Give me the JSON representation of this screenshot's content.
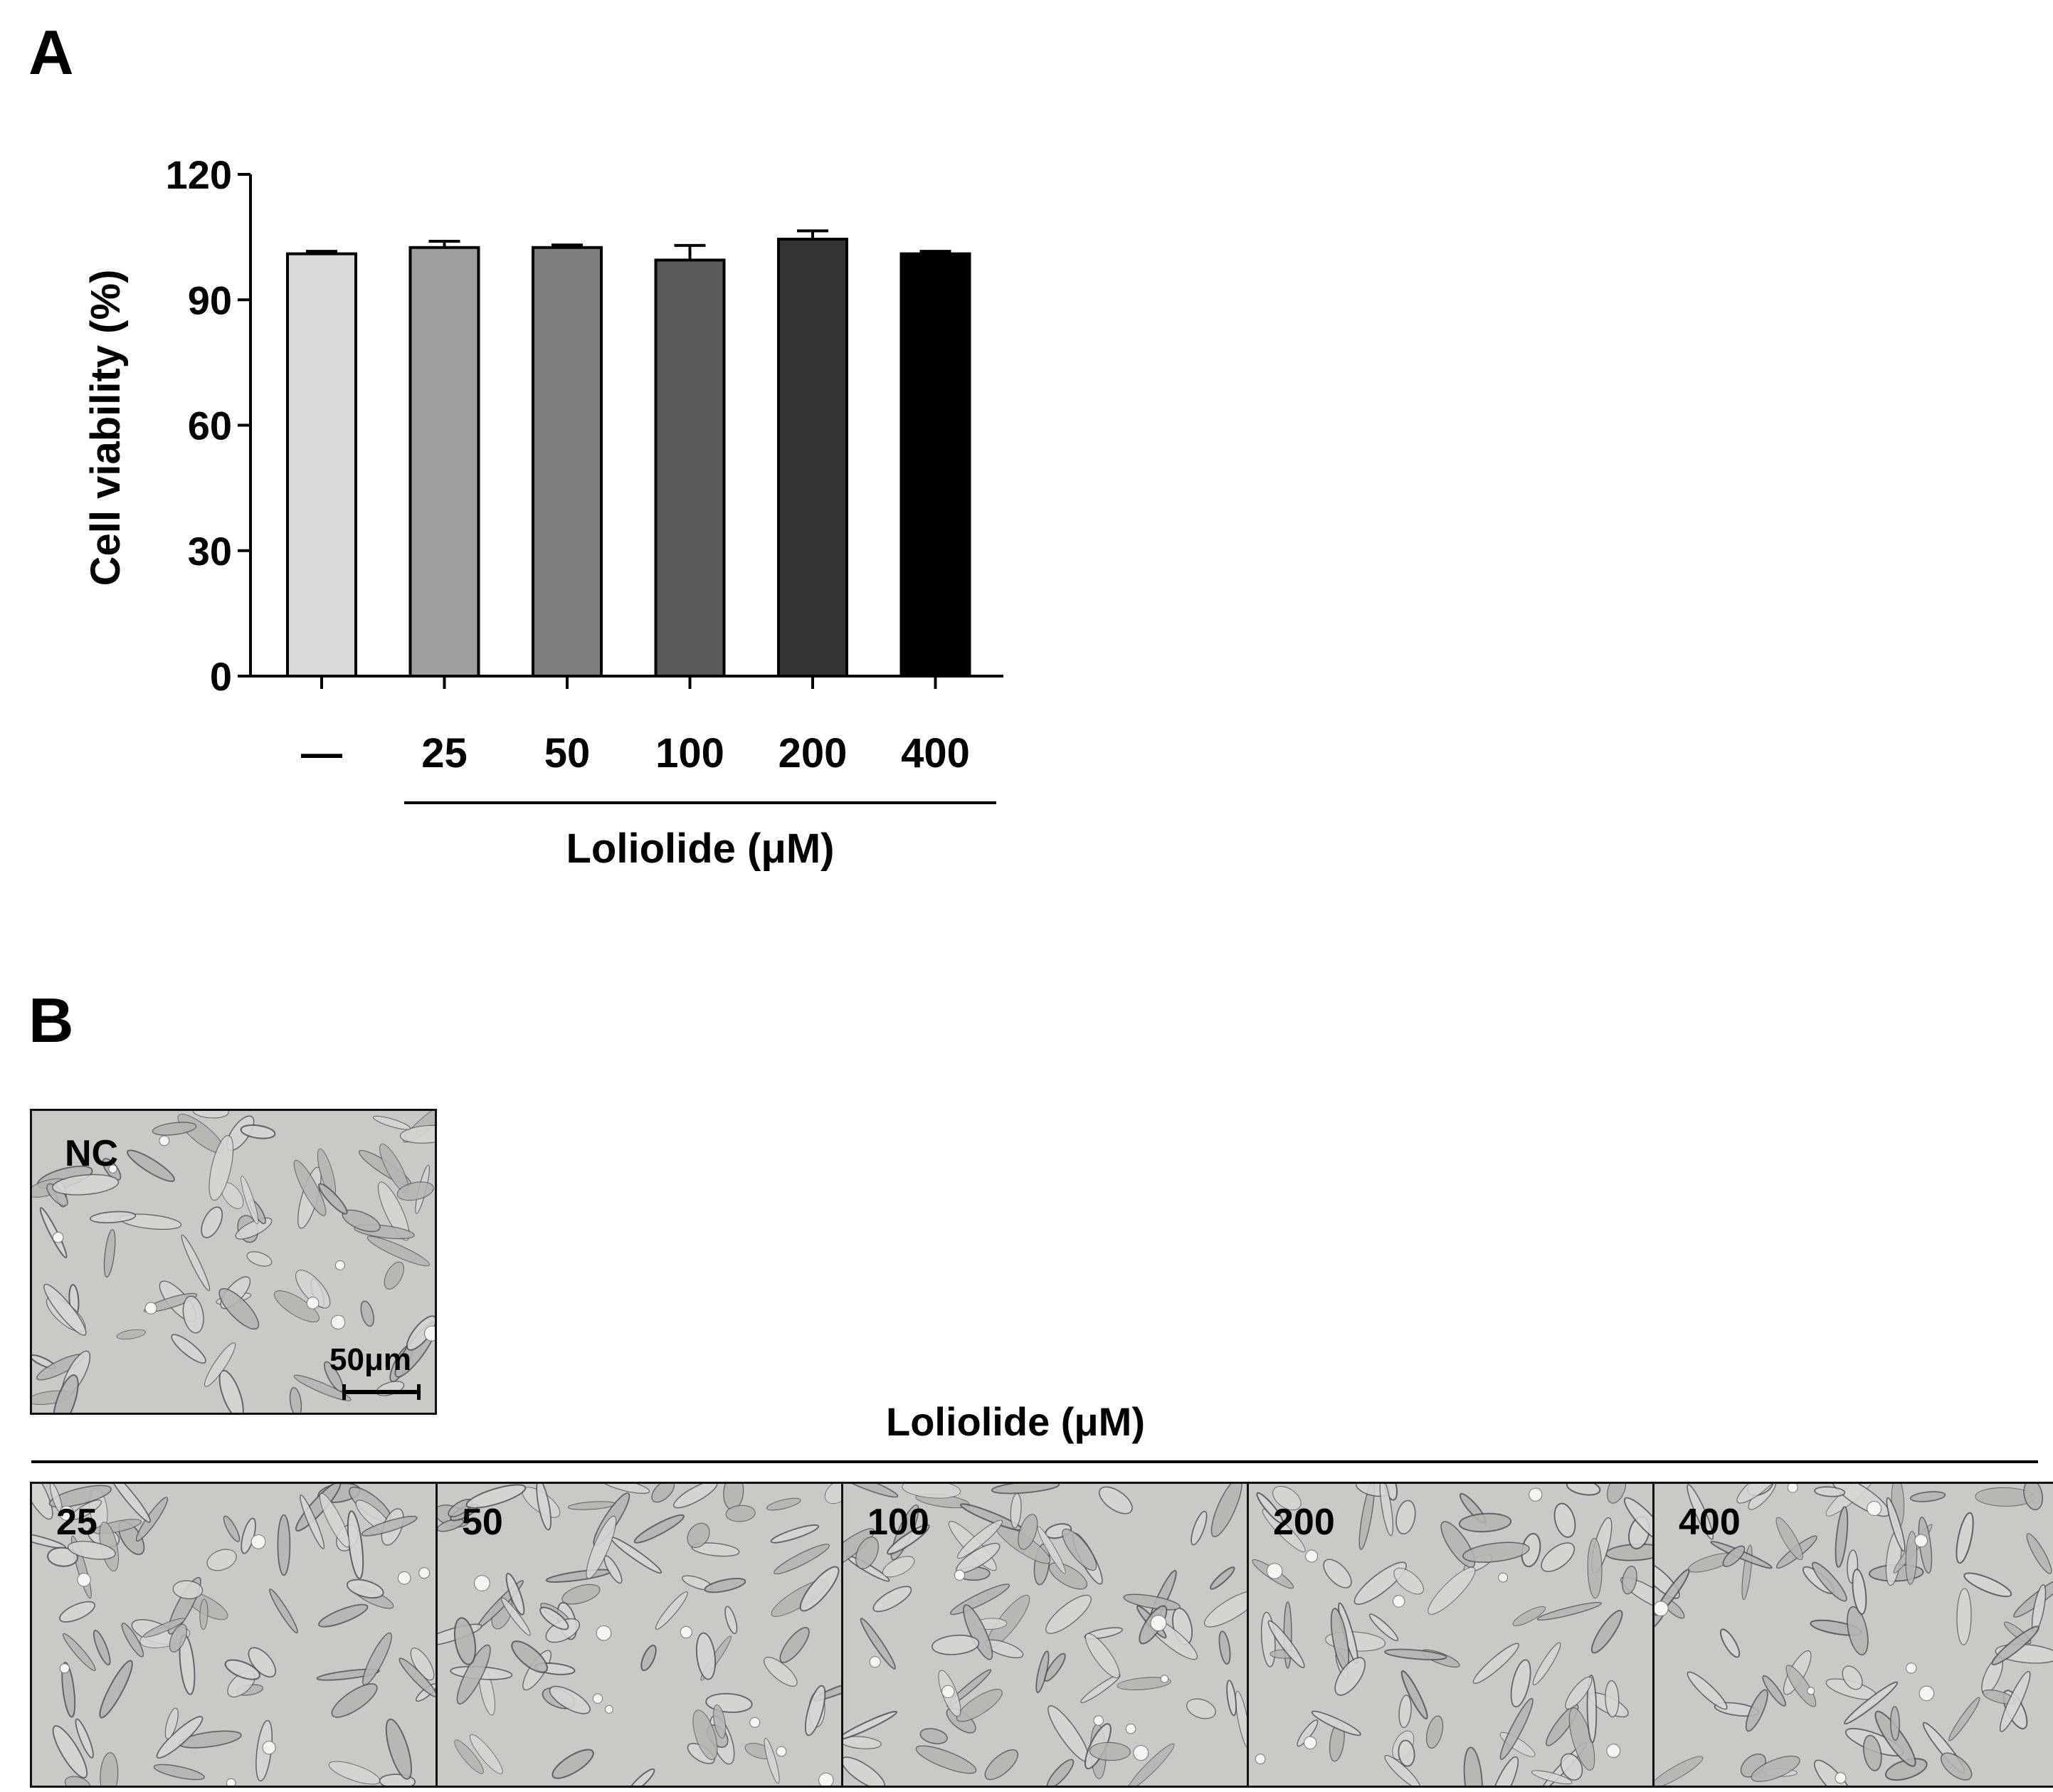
{
  "panels": {
    "a": "A",
    "b": "B"
  },
  "chart_data": {
    "type": "bar",
    "categories": [
      "—",
      "25",
      "50",
      "100",
      "200",
      "400"
    ],
    "values": [
      101,
      102.5,
      102.5,
      99.5,
      104.5,
      101
    ],
    "errors": [
      0.6,
      1.5,
      0.6,
      3.5,
      2.0,
      0.6
    ],
    "colors": [
      "#d9d9d9",
      "#9e9e9e",
      "#7e7e7e",
      "#5a5a5a",
      "#333333",
      "#000000"
    ],
    "ylabel": "Cell viability (%)",
    "xlabel": "Loliolide (μM)",
    "ylim": [
      0,
      120
    ],
    "yticks": [
      0,
      30,
      60,
      90,
      120
    ]
  },
  "micrographs": {
    "nc_label": "NC",
    "scale_label": "50μm",
    "group_title": "Loliolide (μM)",
    "row_labels": [
      "25",
      "50",
      "100",
      "200",
      "400"
    ]
  }
}
